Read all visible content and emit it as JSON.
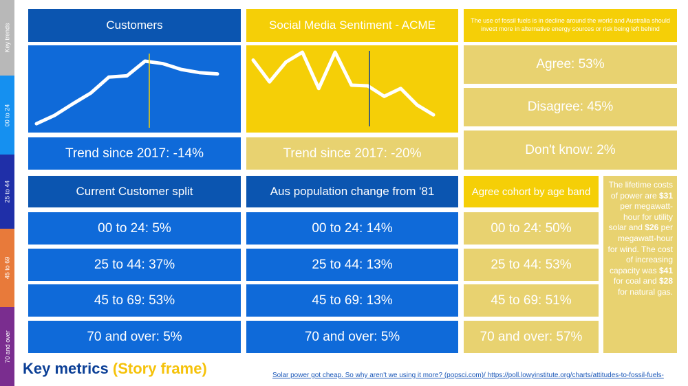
{
  "nav": [
    {
      "label": "Key trends",
      "color": "#b8b8b8"
    },
    {
      "label": "00 to 24",
      "color": "#1590f0"
    },
    {
      "label": "25 to 44",
      "color": "#1f2fa8"
    },
    {
      "label": "45 to 69",
      "color": "#e87a3a"
    },
    {
      "label": "70 and over",
      "color": "#7a2d8f"
    }
  ],
  "customers": {
    "title": "Customers",
    "trend": "Trend since 2017: -14%",
    "line": [
      2,
      15,
      33,
      50,
      75,
      77,
      100,
      96,
      87,
      82,
      80
    ]
  },
  "sentiment": {
    "title": "Social Media Sentiment - ACME",
    "trend": "Trend since 2017: -20%",
    "line": [
      88,
      55,
      85,
      100,
      45,
      100,
      50,
      49,
      33,
      45,
      20,
      5
    ]
  },
  "poll": {
    "question": "The use of fossil fuels is in decline around the world and Australia should invest more in alternative energy sources or risk being left behind",
    "agree": "Agree: 53%",
    "disagree": "Disagree: 45%",
    "dont_know": "Don't know: 2%"
  },
  "customer_split": {
    "title": "Current Customer split",
    "rows": [
      "00 to 24: 5%",
      "25 to 44: 37%",
      "45 to 69: 53%",
      "70 and over: 5%"
    ]
  },
  "population": {
    "title": "Aus population change from '81",
    "rows": [
      "00 to 24: 14%",
      "25 to 44: 13%",
      "45 to 69: 13%",
      "70 and over: 5%"
    ]
  },
  "agree_cohort": {
    "title": "Agree cohort by age band",
    "rows": [
      "00 to 24: 50%",
      "25 to 44: 53%",
      "45 to 69: 51%",
      "70 and over: 57%"
    ]
  },
  "note": {
    "p1": "The lifetime costs of power are ",
    "v1": "$31",
    "p2": " per megawatt-hour for utility solar and ",
    "v2": "$26",
    "p3": " per megawatt-hour for wind. The cost of increasing capacity was ",
    "v3": "$41",
    "p4": " for coal and ",
    "v4": "$28",
    "p5": " for natural gas."
  },
  "footer": {
    "title_main": "Key metrics",
    "title_sub": "(Story frame)",
    "links": "Solar power got cheap. So why aren't we using it more? (popsci.com)/ https://poll.lowyinstitute.org/charts/attitudes-to-fossil-fuels-"
  },
  "colors": {
    "dark_blue": "#0b55b0",
    "blue": "#0f6ad9",
    "yellow": "#f5cf07",
    "khaki": "#e8d270",
    "customers_marker": "#f5cf07",
    "sentiment_marker": "#0b3f96"
  }
}
